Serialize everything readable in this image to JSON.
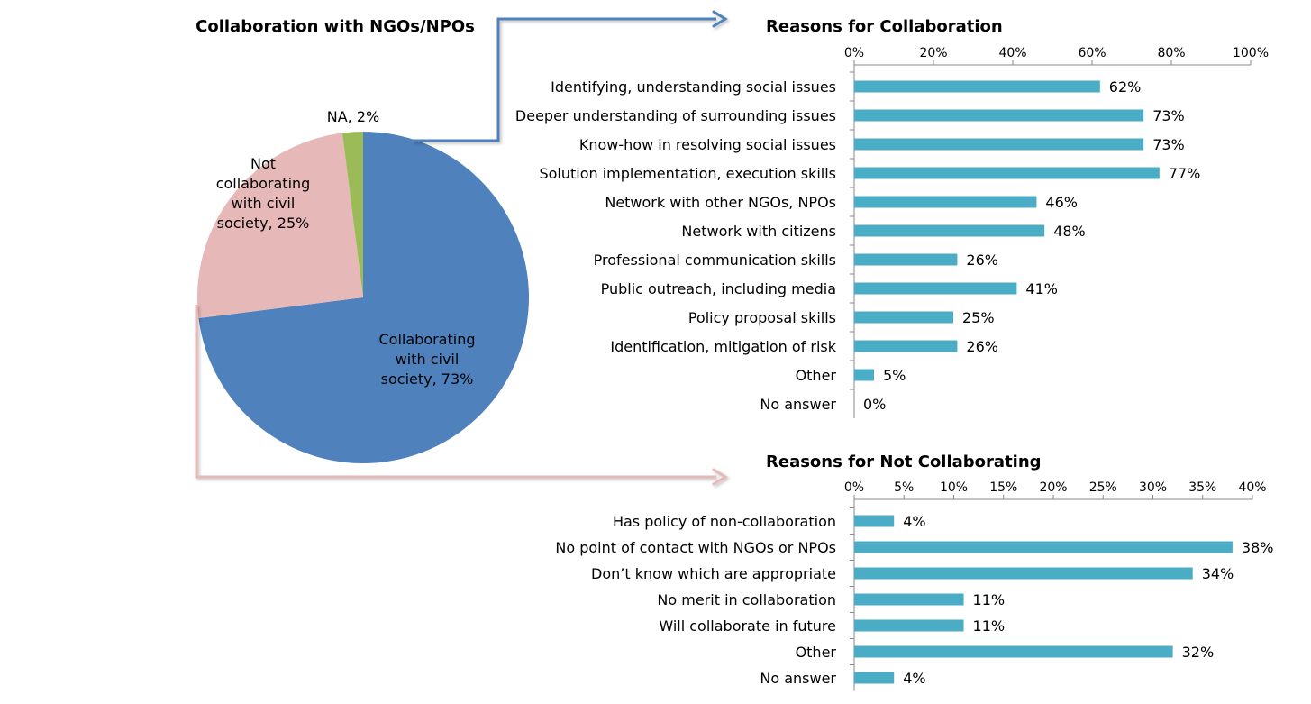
{
  "colors": {
    "pie_collaborating": "#4f81bd",
    "pie_not_collaborating": "#e6b9b8",
    "pie_na": "#9bbb59",
    "bar": "#4bacc6",
    "connector_blue": "#4f81bd",
    "connector_pink": "#e6b9b8"
  },
  "chart_data": [
    {
      "type": "pie",
      "title": "Collaboration with NGOs/NPOs",
      "slices": [
        {
          "label_lines": [
            "Collaborating",
            "with civil",
            "society, 73%"
          ],
          "value": 73,
          "color": "#4f81bd"
        },
        {
          "label_lines": [
            "Not",
            "collaborating",
            "with civil",
            "society, 25%"
          ],
          "value": 25,
          "color": "#e6b9b8"
        },
        {
          "label_lines": [
            "NA, 2%"
          ],
          "value": 2,
          "color": "#9bbb59"
        }
      ]
    },
    {
      "type": "bar",
      "orientation": "horizontal",
      "title": "Reasons for Collaboration",
      "categories": [
        "Identifying, understanding social issues",
        "Deeper understanding of surrounding issues",
        "Know-how in resolving social issues",
        "Solution implementation, execution skills",
        "Network with other NGOs, NPOs",
        "Network with citizens",
        "Professional communication skills",
        "Public outreach, including media",
        "Policy proposal skills",
        "Identification, mitigation of risk",
        "Other",
        "No answer"
      ],
      "values": [
        62,
        73,
        73,
        77,
        46,
        48,
        26,
        41,
        25,
        26,
        5,
        0
      ],
      "value_labels": [
        "62%",
        "73%",
        "73%",
        "77%",
        "46%",
        "48%",
        "26%",
        "41%",
        "25%",
        "26%",
        "5%",
        "0%"
      ],
      "xlim": [
        0,
        100
      ],
      "ticks": [
        0,
        20,
        40,
        60,
        80,
        100
      ],
      "tick_labels": [
        "0%",
        "20%",
        "40%",
        "60%",
        "80%",
        "100%"
      ],
      "axis_position": "top",
      "grid": false
    },
    {
      "type": "bar",
      "orientation": "horizontal",
      "title": "Reasons for Not Collaborating",
      "categories": [
        "Has policy of non-collaboration",
        "No point of contact with NGOs or NPOs",
        "Don’t know which are appropriate",
        "No merit in collaboration",
        "Will collaborate in future",
        "Other",
        "No answer"
      ],
      "values": [
        4,
        38,
        34,
        11,
        11,
        32,
        4
      ],
      "value_labels": [
        "4%",
        "38%",
        "34%",
        "11%",
        "11%",
        "32%",
        "4%"
      ],
      "xlim": [
        0,
        40
      ],
      "ticks": [
        0,
        5,
        10,
        15,
        20,
        25,
        30,
        35,
        40
      ],
      "tick_labels": [
        "0%",
        "5%",
        "10%",
        "15%",
        "20%",
        "25%",
        "30%",
        "35%",
        "40%"
      ],
      "axis_position": "top",
      "grid": false
    }
  ]
}
